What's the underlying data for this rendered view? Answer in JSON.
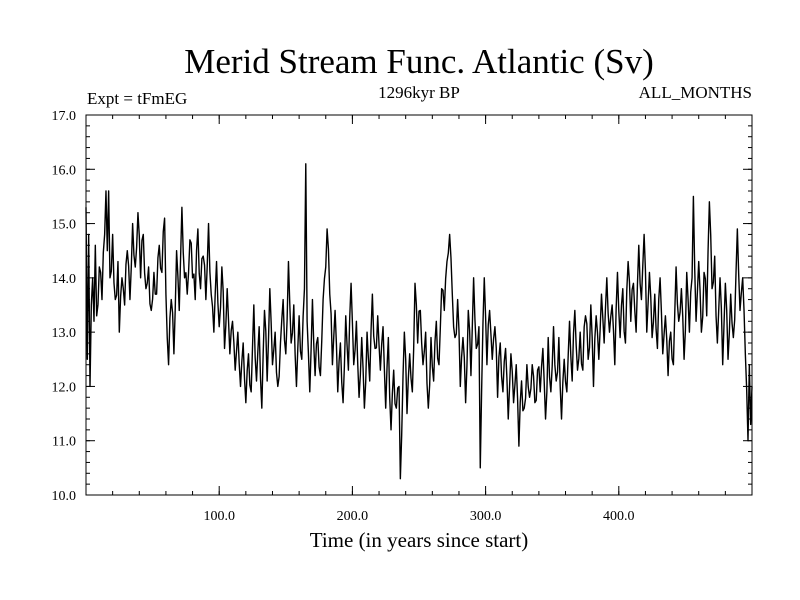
{
  "chart_data": {
    "type": "line",
    "title": "Merid Stream Func. Atlantic (Sv)",
    "subtitle_left": "Expt = tFmEG",
    "subtitle_center": "1296kyr BP",
    "subtitle_right": "ALL_MONTHS",
    "xlabel": "Time (in years since start)",
    "ylabel": "",
    "xlim": [
      0,
      500
    ],
    "ylim": [
      10.0,
      17.0
    ],
    "x_ticks": [
      100,
      200,
      300,
      400
    ],
    "x_tick_labels": [
      "100.0",
      "200.0",
      "300.0",
      "400.0"
    ],
    "y_ticks": [
      10,
      11,
      12,
      13,
      14,
      15,
      16,
      17
    ],
    "y_tick_labels": [
      "10.0",
      "11.0",
      "12.0",
      "13.0",
      "14.0",
      "15.0",
      "16.0",
      "17.0"
    ],
    "grid": false,
    "line_color": "#000000",
    "keypoints": [
      [
        0,
        15.3
      ],
      [
        1,
        12.5
      ],
      [
        2,
        14.8
      ],
      [
        3,
        12.0
      ],
      [
        4,
        13.5
      ],
      [
        5,
        14.0
      ],
      [
        6,
        13.2
      ],
      [
        7,
        14.6
      ],
      [
        8,
        13.3
      ],
      [
        10,
        14.2
      ],
      [
        12,
        13.6
      ],
      [
        14,
        14.8
      ],
      [
        15,
        15.6
      ],
      [
        16,
        14.5
      ],
      [
        17,
        15.6
      ],
      [
        18,
        14.0
      ],
      [
        20,
        14.8
      ],
      [
        22,
        13.6
      ],
      [
        24,
        14.3
      ],
      [
        25,
        13.0
      ],
      [
        27,
        14.0
      ],
      [
        29,
        13.5
      ],
      [
        31,
        14.5
      ],
      [
        33,
        13.6
      ],
      [
        35,
        15.0
      ],
      [
        37,
        14.2
      ],
      [
        39,
        15.2
      ],
      [
        41,
        14.0
      ],
      [
        43,
        14.8
      ],
      [
        45,
        13.8
      ],
      [
        47,
        14.2
      ],
      [
        49,
        13.4
      ],
      [
        51,
        14.1
      ],
      [
        53,
        13.7
      ],
      [
        55,
        14.6
      ],
      [
        57,
        14.1
      ],
      [
        59,
        15.1
      ],
      [
        60,
        13.7
      ],
      [
        62,
        12.4
      ],
      [
        64,
        13.6
      ],
      [
        66,
        12.6
      ],
      [
        68,
        14.5
      ],
      [
        70,
        13.4
      ],
      [
        72,
        15.3
      ],
      [
        74,
        14.0
      ],
      [
        76,
        13.7
      ],
      [
        78,
        14.7
      ],
      [
        80,
        14.0
      ],
      [
        82,
        13.6
      ],
      [
        84,
        14.9
      ],
      [
        86,
        13.8
      ],
      [
        88,
        14.4
      ],
      [
        90,
        13.6
      ],
      [
        92,
        15.0
      ],
      [
        94,
        13.7
      ],
      [
        96,
        13.0
      ],
      [
        98,
        14.3
      ],
      [
        100,
        13.1
      ],
      [
        102,
        14.2
      ],
      [
        104,
        12.7
      ],
      [
        106,
        13.8
      ],
      [
        108,
        12.6
      ],
      [
        110,
        13.2
      ],
      [
        112,
        12.3
      ],
      [
        114,
        13.0
      ],
      [
        116,
        12.0
      ],
      [
        118,
        12.8
      ],
      [
        120,
        11.7
      ],
      [
        122,
        12.6
      ],
      [
        124,
        11.9
      ],
      [
        126,
        13.5
      ],
      [
        128,
        12.1
      ],
      [
        130,
        13.1
      ],
      [
        132,
        11.6
      ],
      [
        134,
        13.4
      ],
      [
        136,
        12.1
      ],
      [
        138,
        13.8
      ],
      [
        140,
        12.4
      ],
      [
        142,
        13.0
      ],
      [
        144,
        12.0
      ],
      [
        146,
        12.8
      ],
      [
        148,
        13.6
      ],
      [
        150,
        12.6
      ],
      [
        152,
        14.3
      ],
      [
        154,
        12.8
      ],
      [
        156,
        13.5
      ],
      [
        158,
        12.0
      ],
      [
        160,
        13.3
      ],
      [
        162,
        12.5
      ],
      [
        164,
        13.8
      ],
      [
        165,
        16.1
      ],
      [
        166,
        13.2
      ],
      [
        168,
        11.9
      ],
      [
        170,
        13.6
      ],
      [
        172,
        12.2
      ],
      [
        174,
        12.9
      ],
      [
        176,
        12.2
      ],
      [
        178,
        13.6
      ],
      [
        180,
        14.2
      ],
      [
        181,
        14.9
      ],
      [
        183,
        13.7
      ],
      [
        185,
        12.4
      ],
      [
        187,
        13.4
      ],
      [
        189,
        11.9
      ],
      [
        191,
        12.8
      ],
      [
        193,
        11.7
      ],
      [
        195,
        13.3
      ],
      [
        197,
        12.3
      ],
      [
        199,
        13.9
      ],
      [
        201,
        12.4
      ],
      [
        203,
        13.2
      ],
      [
        205,
        11.8
      ],
      [
        207,
        12.9
      ],
      [
        209,
        11.6
      ],
      [
        211,
        13.0
      ],
      [
        213,
        12.1
      ],
      [
        215,
        13.7
      ],
      [
        217,
        12.7
      ],
      [
        219,
        13.3
      ],
      [
        221,
        12.3
      ],
      [
        223,
        13.1
      ],
      [
        225,
        11.6
      ],
      [
        227,
        12.9
      ],
      [
        229,
        11.2
      ],
      [
        231,
        12.3
      ],
      [
        233,
        11.6
      ],
      [
        235,
        12.0
      ],
      [
        236,
        10.3
      ],
      [
        237,
        11.1
      ],
      [
        239,
        13.0
      ],
      [
        241,
        11.5
      ],
      [
        243,
        12.6
      ],
      [
        245,
        11.9
      ],
      [
        247,
        13.9
      ],
      [
        249,
        12.8
      ],
      [
        251,
        13.4
      ],
      [
        253,
        12.4
      ],
      [
        255,
        13.0
      ],
      [
        257,
        11.6
      ],
      [
        259,
        12.9
      ],
      [
        261,
        12.1
      ],
      [
        263,
        13.2
      ],
      [
        265,
        12.4
      ],
      [
        267,
        13.8
      ],
      [
        269,
        13.4
      ],
      [
        271,
        14.3
      ],
      [
        273,
        14.8
      ],
      [
        275,
        13.7
      ],
      [
        277,
        12.9
      ],
      [
        279,
        13.6
      ],
      [
        281,
        12.0
      ],
      [
        283,
        12.9
      ],
      [
        285,
        11.7
      ],
      [
        287,
        13.4
      ],
      [
        289,
        12.2
      ],
      [
        291,
        14.0
      ],
      [
        293,
        12.7
      ],
      [
        295,
        13.1
      ],
      [
        296,
        10.5
      ],
      [
        297,
        11.9
      ],
      [
        299,
        14.0
      ],
      [
        301,
        12.4
      ],
      [
        303,
        13.4
      ],
      [
        305,
        12.5
      ],
      [
        307,
        13.1
      ],
      [
        309,
        11.8
      ],
      [
        311,
        12.8
      ],
      [
        313,
        11.9
      ],
      [
        315,
        12.7
      ],
      [
        317,
        11.4
      ],
      [
        319,
        12.6
      ],
      [
        321,
        11.7
      ],
      [
        323,
        12.4
      ],
      [
        325,
        10.9
      ],
      [
        327,
        12.1
      ],
      [
        329,
        11.6
      ],
      [
        331,
        12.4
      ],
      [
        333,
        11.8
      ],
      [
        335,
        12.4
      ],
      [
        337,
        11.7
      ],
      [
        339,
        12.3
      ],
      [
        341,
        11.9
      ],
      [
        343,
        12.7
      ],
      [
        345,
        11.4
      ],
      [
        347,
        12.9
      ],
      [
        349,
        11.9
      ],
      [
        351,
        13.1
      ],
      [
        353,
        12.1
      ],
      [
        355,
        12.9
      ],
      [
        357,
        11.4
      ],
      [
        359,
        12.5
      ],
      [
        361,
        11.9
      ],
      [
        363,
        13.2
      ],
      [
        365,
        12.1
      ],
      [
        367,
        13.4
      ],
      [
        369,
        12.3
      ],
      [
        371,
        13.0
      ],
      [
        373,
        12.3
      ],
      [
        375,
        13.3
      ],
      [
        377,
        12.5
      ],
      [
        379,
        13.5
      ],
      [
        381,
        12.0
      ],
      [
        383,
        13.3
      ],
      [
        385,
        12.5
      ],
      [
        387,
        13.7
      ],
      [
        389,
        12.8
      ],
      [
        391,
        14.0
      ],
      [
        393,
        13.0
      ],
      [
        395,
        13.5
      ],
      [
        397,
        12.4
      ],
      [
        399,
        14.1
      ],
      [
        401,
        12.9
      ],
      [
        403,
        13.8
      ],
      [
        405,
        12.8
      ],
      [
        407,
        14.3
      ],
      [
        409,
        13.2
      ],
      [
        411,
        13.9
      ],
      [
        413,
        13.0
      ],
      [
        415,
        14.6
      ],
      [
        417,
        13.6
      ],
      [
        419,
        14.8
      ],
      [
        421,
        13.0
      ],
      [
        423,
        14.1
      ],
      [
        425,
        12.9
      ],
      [
        427,
        13.7
      ],
      [
        429,
        12.7
      ],
      [
        431,
        14.0
      ],
      [
        433,
        12.6
      ],
      [
        435,
        13.3
      ],
      [
        437,
        12.2
      ],
      [
        439,
        13.0
      ],
      [
        441,
        12.4
      ],
      [
        443,
        14.2
      ],
      [
        445,
        13.2
      ],
      [
        447,
        13.8
      ],
      [
        449,
        12.5
      ],
      [
        451,
        14.1
      ],
      [
        453,
        13.0
      ],
      [
        455,
        14.0
      ],
      [
        456,
        15.5
      ],
      [
        458,
        13.2
      ],
      [
        460,
        14.3
      ],
      [
        462,
        13.0
      ],
      [
        464,
        14.1
      ],
      [
        466,
        13.3
      ],
      [
        468,
        15.4
      ],
      [
        470,
        13.8
      ],
      [
        472,
        14.4
      ],
      [
        474,
        12.8
      ],
      [
        476,
        14.0
      ],
      [
        478,
        12.4
      ],
      [
        480,
        13.9
      ],
      [
        482,
        12.5
      ],
      [
        484,
        13.7
      ],
      [
        486,
        12.9
      ],
      [
        488,
        14.1
      ],
      [
        489,
        14.9
      ],
      [
        491,
        13.4
      ],
      [
        493,
        14.0
      ],
      [
        495,
        12.6
      ],
      [
        497,
        11.0
      ],
      [
        498,
        12.4
      ],
      [
        499,
        11.3
      ],
      [
        500,
        12.0
      ]
    ]
  }
}
